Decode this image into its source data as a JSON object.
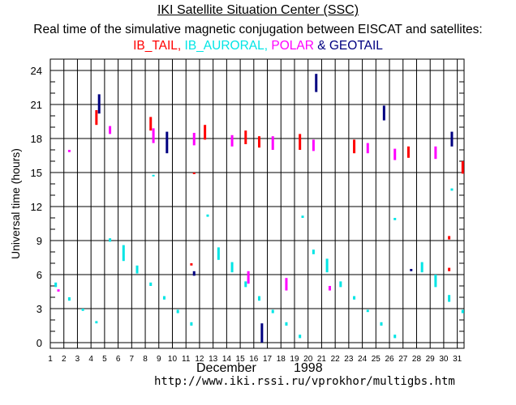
{
  "header": {
    "title": "IKI Satellite Situation Center (SSC)",
    "subtitle": "Real time of the simulative magnetic conjugation between EISCAT and satellites:",
    "legend": [
      {
        "label": "IB_TAIL,",
        "color": "#ff0000"
      },
      {
        "label": "IB_AURORAL,",
        "color": "#00e5e5"
      },
      {
        "label": "POLAR",
        "color": "#ff00ff"
      },
      {
        "label": "& GEOTAIL",
        "color": "#000080"
      }
    ]
  },
  "footer": {
    "month": "December",
    "year": "1998",
    "url": "http://www.iki.rssi.ru/vprokhor/multigbs.htm"
  },
  "colors": {
    "IB_TAIL": "#ff0000",
    "IB_AURORAL": "#00e5e5",
    "POLAR": "#ff00ff",
    "GEOTAIL": "#000080",
    "grid": "#000000"
  },
  "chart_data": {
    "type": "scatter",
    "xlabel": "",
    "ylabel": "Universal time (hours)",
    "xticks": [
      "1",
      "2",
      "3",
      "4",
      "5",
      "6",
      "7",
      "8",
      "9",
      "10",
      "11",
      "12",
      "13",
      "14",
      "15",
      "16",
      "17",
      "18",
      "19",
      "20",
      "21",
      "22",
      "23",
      "24",
      "25",
      "26",
      "27",
      "28",
      "29",
      "30",
      "31"
    ],
    "yticks": [
      "0",
      "3",
      "6",
      "9",
      "12",
      "15",
      "18",
      "21",
      "24"
    ],
    "xlim": [
      1,
      31.5
    ],
    "ylim": [
      -0.5,
      25
    ],
    "grid": true,
    "series": [
      {
        "name": "IB_TAIL",
        "color": "#ff0000",
        "segments": [
          {
            "day": 4.4,
            "start": 19.2,
            "end": 20.5
          },
          {
            "day": 8.4,
            "start": 18.7,
            "end": 19.9
          },
          {
            "day": 11.4,
            "start": 6.8,
            "end": 7.0
          },
          {
            "day": 11.6,
            "start": 14.9,
            "end": 15.0
          },
          {
            "day": 12.4,
            "start": 17.9,
            "end": 19.2
          },
          {
            "day": 15.4,
            "start": 17.5,
            "end": 18.7
          },
          {
            "day": 16.4,
            "start": 17.2,
            "end": 18.2
          },
          {
            "day": 19.4,
            "start": 17.0,
            "end": 18.4
          },
          {
            "day": 23.4,
            "start": 16.7,
            "end": 17.9
          },
          {
            "day": 27.4,
            "start": 16.3,
            "end": 17.3
          },
          {
            "day": 30.4,
            "start": 9.1,
            "end": 9.4
          },
          {
            "day": 30.4,
            "start": 6.3,
            "end": 6.6
          },
          {
            "day": 31.4,
            "start": 14.9,
            "end": 16.0
          }
        ]
      },
      {
        "name": "IB_AURORAL",
        "color": "#00e5e5",
        "segments": [
          {
            "day": 1.4,
            "start": 4.9,
            "end": 5.3
          },
          {
            "day": 2.4,
            "start": 3.7,
            "end": 4.0
          },
          {
            "day": 3.4,
            "start": 2.8,
            "end": 3.0
          },
          {
            "day": 4.4,
            "start": 1.7,
            "end": 1.9
          },
          {
            "day": 5.4,
            "start": 8.9,
            "end": 9.2
          },
          {
            "day": 6.4,
            "start": 7.2,
            "end": 8.6
          },
          {
            "day": 7.4,
            "start": 6.1,
            "end": 6.8
          },
          {
            "day": 8.4,
            "start": 5.0,
            "end": 5.3
          },
          {
            "day": 8.6,
            "start": 14.7,
            "end": 14.8
          },
          {
            "day": 9.4,
            "start": 3.8,
            "end": 4.1
          },
          {
            "day": 10.4,
            "start": 2.6,
            "end": 2.9
          },
          {
            "day": 11.4,
            "start": 1.5,
            "end": 1.8
          },
          {
            "day": 12.6,
            "start": 11.1,
            "end": 11.3
          },
          {
            "day": 13.4,
            "start": 7.3,
            "end": 8.4
          },
          {
            "day": 14.4,
            "start": 6.2,
            "end": 7.1
          },
          {
            "day": 15.4,
            "start": 4.9,
            "end": 5.4
          },
          {
            "day": 16.4,
            "start": 3.7,
            "end": 4.1
          },
          {
            "day": 17.4,
            "start": 2.6,
            "end": 2.9
          },
          {
            "day": 18.4,
            "start": 1.5,
            "end": 1.8
          },
          {
            "day": 19.4,
            "start": 0.4,
            "end": 0.7
          },
          {
            "day": 19.6,
            "start": 11.0,
            "end": 11.2
          },
          {
            "day": 20.4,
            "start": 7.8,
            "end": 8.2
          },
          {
            "day": 21.4,
            "start": 6.2,
            "end": 7.4
          },
          {
            "day": 22.4,
            "start": 4.9,
            "end": 5.4
          },
          {
            "day": 23.4,
            "start": 3.8,
            "end": 4.1
          },
          {
            "day": 24.4,
            "start": 2.7,
            "end": 2.9
          },
          {
            "day": 25.4,
            "start": 1.5,
            "end": 1.8
          },
          {
            "day": 26.4,
            "start": 0.4,
            "end": 0.7
          },
          {
            "day": 26.4,
            "start": 10.8,
            "end": 11.0
          },
          {
            "day": 28.4,
            "start": 6.2,
            "end": 7.1
          },
          {
            "day": 29.4,
            "start": 4.9,
            "end": 6.0
          },
          {
            "day": 30.4,
            "start": 3.6,
            "end": 4.2
          },
          {
            "day": 30.6,
            "start": 13.4,
            "end": 13.6
          },
          {
            "day": 31.4,
            "start": 2.6,
            "end": 2.9
          }
        ]
      },
      {
        "name": "POLAR",
        "color": "#ff00ff",
        "segments": [
          {
            "day": 1.6,
            "start": 4.5,
            "end": 4.7
          },
          {
            "day": 2.4,
            "start": 16.8,
            "end": 17.0
          },
          {
            "day": 5.4,
            "start": 18.4,
            "end": 19.1
          },
          {
            "day": 8.6,
            "start": 17.6,
            "end": 18.9
          },
          {
            "day": 11.6,
            "start": 17.4,
            "end": 18.5
          },
          {
            "day": 14.4,
            "start": 17.3,
            "end": 18.3
          },
          {
            "day": 15.6,
            "start": 5.2,
            "end": 6.3
          },
          {
            "day": 17.4,
            "start": 17.0,
            "end": 18.2
          },
          {
            "day": 18.4,
            "start": 4.6,
            "end": 5.7
          },
          {
            "day": 20.4,
            "start": 16.9,
            "end": 17.9
          },
          {
            "day": 21.6,
            "start": 4.6,
            "end": 5.0
          },
          {
            "day": 24.4,
            "start": 16.7,
            "end": 17.6
          },
          {
            "day": 26.4,
            "start": 16.1,
            "end": 17.1
          },
          {
            "day": 29.4,
            "start": 16.2,
            "end": 17.3
          }
        ]
      },
      {
        "name": "GEOTAIL",
        "color": "#000080",
        "segments": [
          {
            "day": 4.6,
            "start": 20.2,
            "end": 21.9
          },
          {
            "day": 9.6,
            "start": 16.7,
            "end": 18.6
          },
          {
            "day": 11.6,
            "start": 5.9,
            "end": 6.3
          },
          {
            "day": 16.6,
            "start": 0.0,
            "end": 1.7
          },
          {
            "day": 20.6,
            "start": 22.1,
            "end": 23.7
          },
          {
            "day": 25.6,
            "start": 19.6,
            "end": 20.9
          },
          {
            "day": 27.6,
            "start": 6.3,
            "end": 6.5
          },
          {
            "day": 30.6,
            "start": 17.3,
            "end": 18.6
          }
        ]
      }
    ]
  }
}
